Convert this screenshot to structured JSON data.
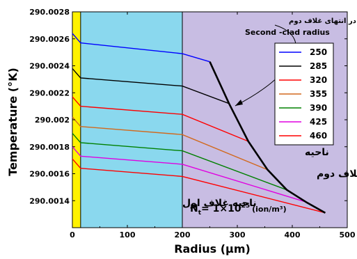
{
  "chart_data": {
    "type": "line",
    "xlabel": "Radius (μm)",
    "ylabel": "Temperature (°K)",
    "xlim": [
      0,
      500
    ],
    "ylim": [
      290.0012,
      290.0028
    ],
    "x_ticks": [
      "0",
      "100",
      "200",
      "300",
      "400",
      "500"
    ],
    "y_ticks": [
      "290.0014",
      "290.0016",
      "290.0018",
      "290.002",
      "290.0022",
      "290.0024",
      "290.0026",
      "290.0028"
    ],
    "legend_title": "Second -clad radius",
    "regions": [
      {
        "name": "core",
        "x": [
          0,
          15
        ],
        "color": "#fff200"
      },
      {
        "name": "first-clad",
        "x": [
          15,
          200
        ],
        "color": "#8ad8ee",
        "label": "ناحیه غلاف اول"
      },
      {
        "name": "second-clad",
        "x": [
          200,
          500
        ],
        "color": "#c8bde3",
        "label_line1": "ناحیه",
        "label_line2": "غلاف دوم"
      }
    ],
    "annotation_top": "پوش تغییرات دما در انتهای غلاف دوم",
    "nt_label": "N",
    "nt_sub": "t",
    "nt_eq": "= 1×10",
    "nt_exp": "25",
    "nt_unit": "(ion/m³)",
    "series": [
      {
        "name": "250",
        "color": "#0000ff",
        "x": [
          0,
          15,
          200,
          250
        ],
        "y": [
          290.00264,
          290.00257,
          290.00249,
          290.00243
        ]
      },
      {
        "name": "285",
        "color": "#000000",
        "x": [
          0,
          15,
          200,
          285
        ],
        "y": [
          290.00238,
          290.00231,
          290.00225,
          290.00212
        ]
      },
      {
        "name": "320",
        "color": "#ff0000",
        "x": [
          0,
          15,
          200,
          320
        ],
        "y": [
          290.00217,
          290.0021,
          290.00204,
          290.00184
        ]
      },
      {
        "name": "355",
        "color": "#d2691e",
        "x": [
          0,
          15,
          200,
          355
        ],
        "y": [
          290.00202,
          290.00195,
          290.00189,
          290.00163
        ]
      },
      {
        "name": "390",
        "color": "#008000",
        "x": [
          0,
          15,
          200,
          390
        ],
        "y": [
          290.0019,
          290.00183,
          290.00177,
          290.00148
        ]
      },
      {
        "name": "425",
        "color": "#e000e0",
        "x": [
          0,
          15,
          200,
          425
        ],
        "y": [
          290.0018,
          290.00173,
          290.00167,
          290.00139
        ]
      },
      {
        "name": "460",
        "color": "#ff0000",
        "x": [
          0,
          15,
          200,
          460
        ],
        "y": [
          290.00171,
          290.00164,
          290.00158,
          290.00131
        ]
      }
    ],
    "envelope": {
      "x": [
        250,
        285,
        320,
        355,
        390,
        425,
        460
      ],
      "y": [
        290.00243,
        290.00212,
        290.00184,
        290.00163,
        290.00148,
        290.00139,
        290.00131
      ]
    }
  }
}
